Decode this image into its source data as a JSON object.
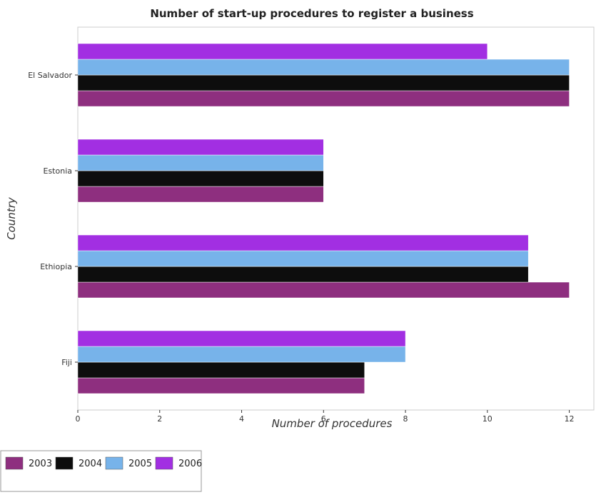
{
  "chart_data": {
    "type": "bar",
    "orientation": "horizontal",
    "title": "Number of start-up procedures to register a business",
    "xlabel": "Number of procedures",
    "ylabel": "Country",
    "categories": [
      "El Salvador",
      "Estonia",
      "Ethiopia",
      "Fiji"
    ],
    "series": [
      {
        "name": "2003",
        "color": "#8e2f7f",
        "values": [
          12,
          6,
          12,
          7
        ]
      },
      {
        "name": "2004",
        "color": "#0d0d0d",
        "values": [
          12,
          6,
          11,
          7
        ]
      },
      {
        "name": "2005",
        "color": "#77b3ea",
        "values": [
          12,
          6,
          11,
          8
        ]
      },
      {
        "name": "2006",
        "color": "#a22fe2",
        "values": [
          10,
          6,
          11,
          8
        ]
      }
    ],
    "xlim": [
      0,
      12.6
    ],
    "xticks": [
      0,
      2,
      4,
      6,
      8,
      10,
      12
    ],
    "grid": false,
    "legend_position": "bottom-left"
  }
}
